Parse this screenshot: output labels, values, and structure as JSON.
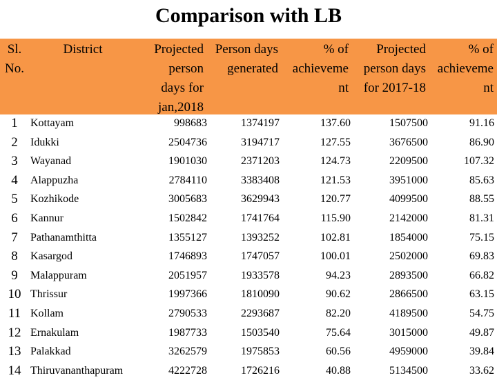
{
  "title": "Comparison with LB",
  "table": {
    "header": [
      [
        "Sl.",
        "No."
      ],
      [
        "District"
      ],
      [
        "Projected",
        "person",
        "days for",
        "jan,2018"
      ],
      [
        "Person days",
        "generated"
      ],
      [
        "% of",
        "achieveme",
        "nt"
      ],
      [
        "Projected",
        "person days",
        "for 2017-18"
      ],
      [
        "% of",
        "achieveme",
        "nt"
      ]
    ],
    "rows": [
      [
        "1",
        "Kottayam",
        "998683",
        "1374197",
        "137.60",
        "1507500",
        "91.16"
      ],
      [
        "2",
        "Idukki",
        "2504736",
        "3194717",
        "127.55",
        "3676500",
        "86.90"
      ],
      [
        "3",
        "Wayanad",
        "1901030",
        "2371203",
        "124.73",
        "2209500",
        "107.32"
      ],
      [
        "4",
        "Alappuzha",
        "2784110",
        "3383408",
        "121.53",
        "3951000",
        "85.63"
      ],
      [
        "5",
        "Kozhikode",
        "3005683",
        "3629943",
        "120.77",
        "4099500",
        "88.55"
      ],
      [
        "6",
        "Kannur",
        "1502842",
        "1741764",
        "115.90",
        "2142000",
        "81.31"
      ],
      [
        "7",
        "Pathanamthitta",
        "1355127",
        "1393252",
        "102.81",
        "1854000",
        "75.15"
      ],
      [
        "8",
        "Kasargod",
        "1746893",
        "1747057",
        "100.01",
        "2502000",
        "69.83"
      ],
      [
        "9",
        "Malappuram",
        "2051957",
        "1933578",
        "94.23",
        "2893500",
        "66.82"
      ],
      [
        "10",
        "Thrissur",
        "1997366",
        "1810090",
        "90.62",
        "2866500",
        "63.15"
      ],
      [
        "11",
        "Kollam",
        "2790533",
        "2293687",
        "82.20",
        "4189500",
        "54.75"
      ],
      [
        "12",
        "Ernakulam",
        "1987733",
        "1503540",
        "75.64",
        "3015000",
        "49.87"
      ],
      [
        "13",
        "Palakkad",
        "3262579",
        "1975853",
        "60.56",
        "4959000",
        "39.84"
      ],
      [
        "14",
        "Thiruvananthapuram",
        "4222728",
        "1726216",
        "40.88",
        "5134500",
        "33.62"
      ]
    ]
  }
}
